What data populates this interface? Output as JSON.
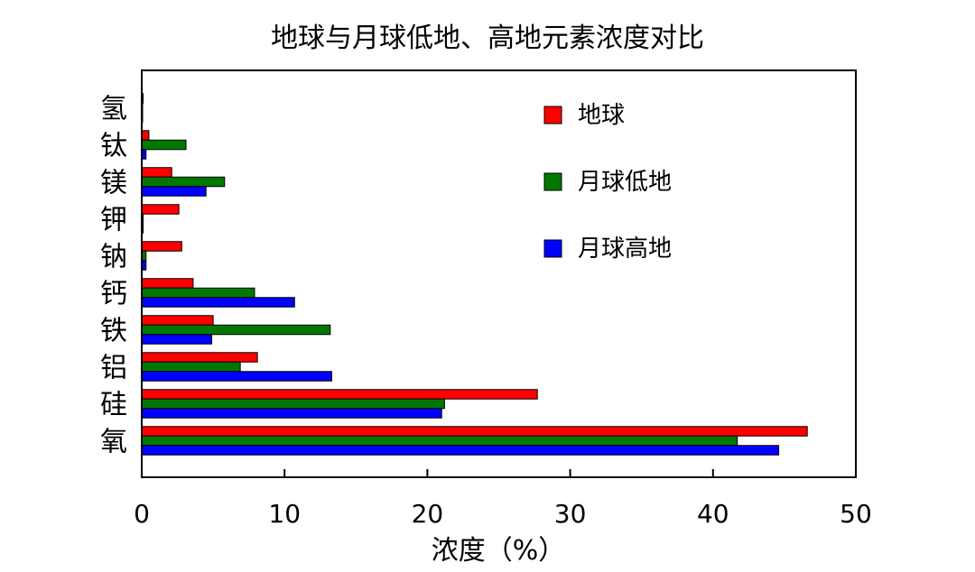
{
  "chart_data": {
    "type": "bar",
    "orientation": "horizontal",
    "title": "地球与月球低地、高地元素浓度对比",
    "xlabel": "浓度（%）",
    "ylabel": "",
    "xlim": [
      0,
      50
    ],
    "xticks": [
      0,
      10,
      20,
      30,
      40,
      50
    ],
    "grid": false,
    "legend_position": "top-right",
    "categories": [
      "氧",
      "硅",
      "铝",
      "铁",
      "钙",
      "钠",
      "钾",
      "镁",
      "钛",
      "氢"
    ],
    "series": [
      {
        "name": "地球",
        "color": "#ff0000",
        "values": [
          46.6,
          27.7,
          8.1,
          5.0,
          3.6,
          2.8,
          2.6,
          2.1,
          0.5,
          0.1
        ]
      },
      {
        "name": "月球低地",
        "color": "#007800",
        "values": [
          41.7,
          21.2,
          6.9,
          13.2,
          7.9,
          0.3,
          0.1,
          5.8,
          3.1,
          0.0
        ]
      },
      {
        "name": "月球高地",
        "color": "#0000ff",
        "values": [
          44.6,
          21.0,
          13.3,
          4.9,
          10.7,
          0.3,
          0.1,
          4.5,
          0.3,
          0.0
        ]
      }
    ]
  }
}
